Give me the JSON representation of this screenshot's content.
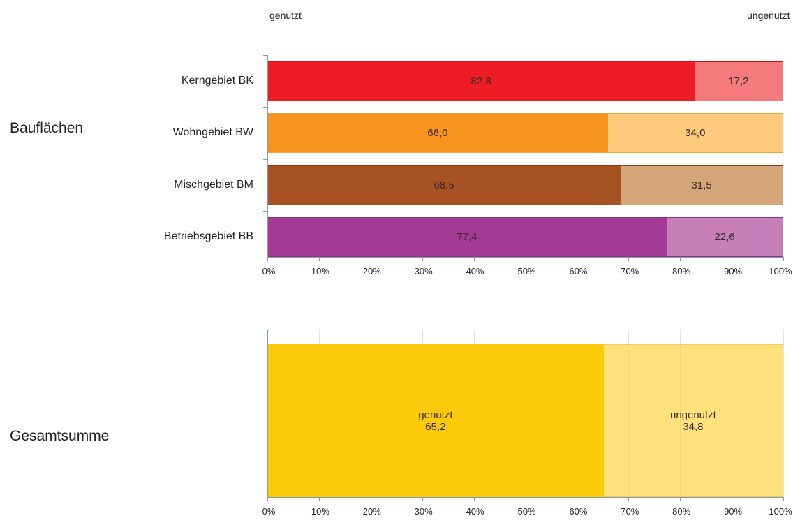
{
  "headers": {
    "left": "genutzt",
    "right": "ungenutzt"
  },
  "group_labels": {
    "top": "Bauflächen",
    "bottom": "Gesamtsumme"
  },
  "colors": {
    "kern_used": "#ee1c25",
    "kern_unused": "#f47a7e",
    "wohn_used": "#f7941e",
    "wohn_unused": "#fdc97a",
    "misch_used": "#a65223",
    "misch_unused": "#d4a678",
    "betrieb_used": "#a23a96",
    "betrieb_unused": "#c77fb8",
    "total_used": "#fbca0b",
    "total_unused": "#fde27c"
  },
  "chart_data": [
    {
      "type": "bar",
      "orientation": "horizontal",
      "stacked": "percent",
      "categories": [
        "Kerngebiet  BK",
        "Wohngebiet  BW",
        "Mischgebiet  BM",
        "Betriebsgebiet  BB"
      ],
      "series": [
        {
          "name": "genutzt",
          "values": [
            82.8,
            66.0,
            68.5,
            77.4
          ],
          "labels": [
            "82,8",
            "66,0",
            "68,5",
            "77,4"
          ]
        },
        {
          "name": "ungenutzt",
          "values": [
            17.2,
            34.0,
            31.5,
            22.6
          ],
          "labels": [
            "17,2",
            "34,0",
            "31,5",
            "22,6"
          ]
        }
      ],
      "x_ticks": [
        "0%",
        "10%",
        "20%",
        "30%",
        "40%",
        "50%",
        "60%",
        "70%",
        "80%",
        "90%",
        "100%"
      ],
      "xlim": [
        0,
        100
      ],
      "grid": false
    },
    {
      "type": "bar",
      "orientation": "horizontal",
      "stacked": "percent",
      "categories": [
        ""
      ],
      "series": [
        {
          "name": "genutzt",
          "values": [
            65.2
          ],
          "labels": [
            "65,2"
          ]
        },
        {
          "name": "ungenutzt",
          "values": [
            34.8
          ],
          "labels": [
            "34,8"
          ]
        }
      ],
      "x_ticks": [
        "0%",
        "10%",
        "20%",
        "30%",
        "40%",
        "50%",
        "60%",
        "70%",
        "80%",
        "90%",
        "100%"
      ],
      "xlim": [
        0,
        100
      ],
      "grid": true
    }
  ]
}
